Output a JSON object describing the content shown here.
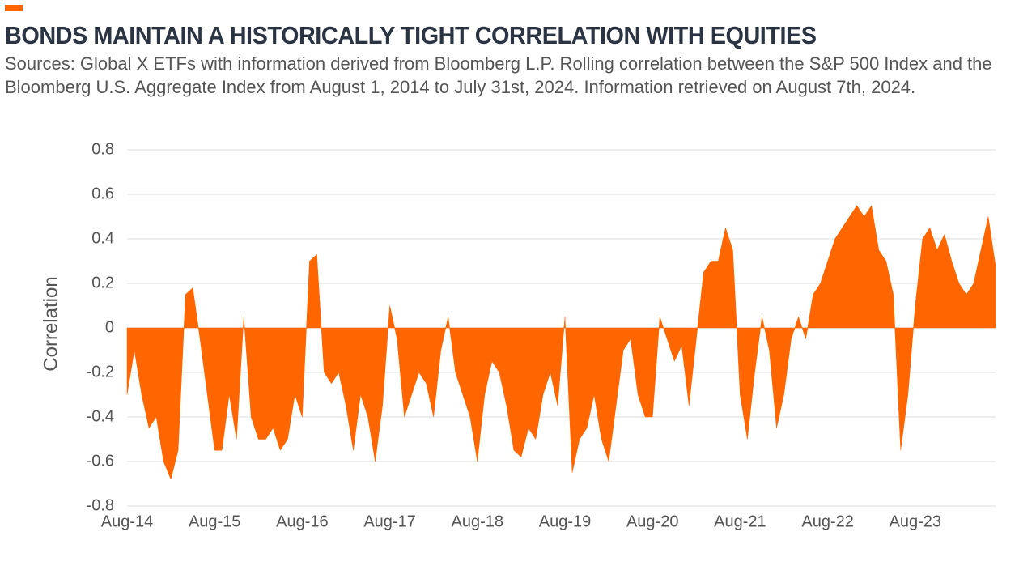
{
  "chart_data": {
    "type": "area",
    "title": "BONDS MAINTAIN A HISTORICALLY TIGHT CORRELATION WITH EQUITIES",
    "subtitle": "Sources: Global X ETFs with information derived from Bloomberg L.P.  Rolling correlation between the S&P 500 Index and the Bloomberg U.S. Aggregate Index from August 1, 2014 to July 31st, 2024. Information retrieved on August 7th, 2024.",
    "y_label": "Correlation",
    "color": "#ff6600",
    "grid": true,
    "ylim": [
      -0.8,
      0.8
    ],
    "yticks": [
      -0.8,
      -0.6,
      -0.4,
      -0.2,
      0,
      0.2,
      0.4,
      0.6,
      0.8
    ],
    "categories": [
      "Aug-14",
      null,
      null,
      null,
      null,
      null,
      null,
      null,
      null,
      null,
      null,
      null,
      "Aug-15",
      null,
      null,
      null,
      null,
      null,
      null,
      null,
      null,
      null,
      null,
      null,
      "Aug-16",
      null,
      null,
      null,
      null,
      null,
      null,
      null,
      null,
      null,
      null,
      null,
      "Aug-17",
      null,
      null,
      null,
      null,
      null,
      null,
      null,
      null,
      null,
      null,
      null,
      "Aug-18",
      null,
      null,
      null,
      null,
      null,
      null,
      null,
      null,
      null,
      null,
      null,
      "Aug-19",
      null,
      null,
      null,
      null,
      null,
      null,
      null,
      null,
      null,
      null,
      null,
      "Aug-20",
      null,
      null,
      null,
      null,
      null,
      null,
      null,
      null,
      null,
      null,
      null,
      "Aug-21",
      null,
      null,
      null,
      null,
      null,
      null,
      null,
      null,
      null,
      null,
      null,
      "Aug-22",
      null,
      null,
      null,
      null,
      null,
      null,
      null,
      null,
      null,
      null,
      null,
      "Aug-23",
      null,
      null,
      null,
      null,
      null,
      null,
      null,
      null,
      null,
      null,
      null
    ],
    "values": [
      -0.3,
      -0.1,
      -0.3,
      -0.45,
      -0.4,
      -0.6,
      -0.68,
      -0.55,
      0.15,
      0.18,
      -0.05,
      -0.3,
      -0.55,
      -0.55,
      -0.3,
      -0.5,
      0.05,
      -0.4,
      -0.5,
      -0.5,
      -0.45,
      -0.55,
      -0.5,
      -0.3,
      -0.4,
      0.3,
      0.33,
      -0.2,
      -0.25,
      -0.2,
      -0.35,
      -0.55,
      -0.3,
      -0.4,
      -0.6,
      -0.35,
      0.1,
      -0.05,
      -0.4,
      -0.3,
      -0.2,
      -0.25,
      -0.4,
      -0.1,
      0.05,
      -0.2,
      -0.3,
      -0.4,
      -0.6,
      -0.3,
      -0.15,
      -0.2,
      -0.35,
      -0.55,
      -0.58,
      -0.45,
      -0.5,
      -0.3,
      -0.2,
      -0.35,
      0.05,
      -0.65,
      -0.5,
      -0.45,
      -0.3,
      -0.5,
      -0.6,
      -0.35,
      -0.1,
      -0.05,
      -0.3,
      -0.4,
      -0.4,
      0.05,
      -0.05,
      -0.15,
      -0.08,
      -0.35,
      -0.05,
      0.25,
      0.3,
      0.3,
      0.45,
      0.35,
      -0.3,
      -0.5,
      -0.2,
      0.05,
      -0.1,
      -0.45,
      -0.3,
      -0.05,
      0.05,
      -0.05,
      0.15,
      0.2,
      0.3,
      0.4,
      0.45,
      0.5,
      0.55,
      0.5,
      0.55,
      0.35,
      0.3,
      0.15,
      -0.55,
      -0.3,
      0.1,
      0.4,
      0.45,
      0.35,
      0.42,
      0.3,
      0.2,
      0.15,
      0.2,
      0.35,
      0.5,
      0.28
    ]
  }
}
